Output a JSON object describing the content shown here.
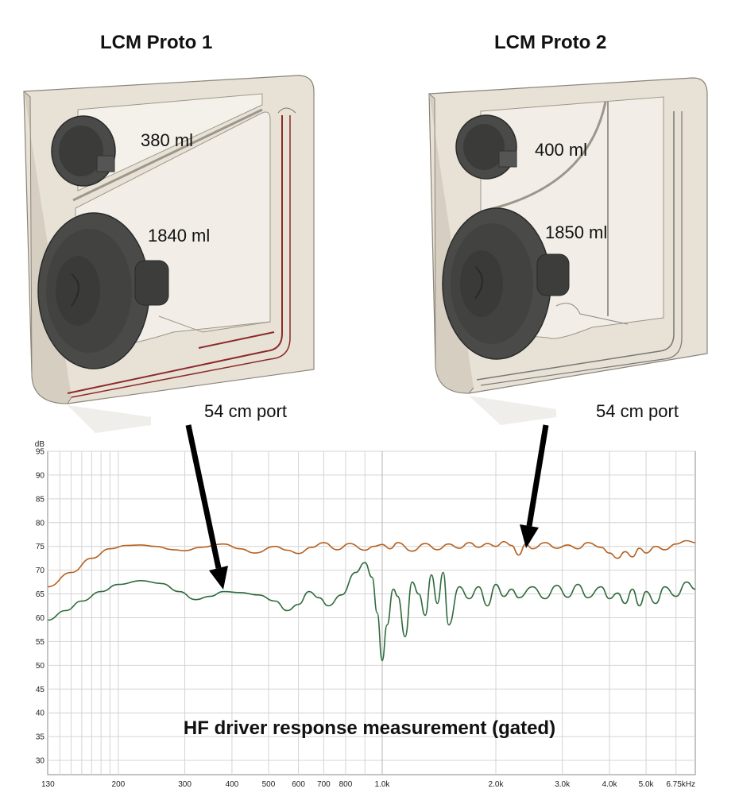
{
  "protos": [
    {
      "title": "LCM Proto 1",
      "hf_volume": "380 ml",
      "lf_volume": "1840 ml",
      "port": "54 cm port"
    },
    {
      "title": "LCM Proto 2",
      "hf_volume": "400 ml",
      "lf_volume": "1850 ml",
      "port": "54 cm port"
    }
  ],
  "colors": {
    "proto1_trace": "#2e6b3c",
    "proto2_trace": "#b5601f",
    "grid": "#d4d4d4",
    "cabinet": "#e8e2d6",
    "driver": "#4a4a48"
  },
  "chart_data": {
    "type": "line",
    "title": "HF driver response measurement (gated)",
    "ylabel": "dB",
    "xscale": "log",
    "xlim": [
      130,
      6750
    ],
    "ylim": [
      27,
      95
    ],
    "x_tick_labels": [
      "130",
      "200",
      "300",
      "400",
      "500",
      "600",
      "700",
      "800",
      "1.0k",
      "2.0k",
      "3.0k",
      "4.0k",
      "5.0k",
      "6.75kHz"
    ],
    "y_tick_labels": [
      "95",
      "90",
      "85",
      "80",
      "75",
      "70",
      "65",
      "60",
      "55",
      "50",
      "45",
      "40",
      "35",
      "30"
    ],
    "grid": true,
    "series": [
      {
        "color": "#b5601f",
        "x": [
          130,
          150,
          170,
          190,
          210,
          230,
          250,
          280,
          300,
          330,
          380,
          420,
          460,
          520,
          560,
          600,
          650,
          700,
          760,
          820,
          900,
          950,
          1000,
          1050,
          1100,
          1200,
          1300,
          1400,
          1500,
          1600,
          1700,
          1800,
          1900,
          2000,
          2100,
          2200,
          2300,
          2400,
          2500,
          2700,
          2900,
          3100,
          3300,
          3500,
          3800,
          4000,
          4200,
          4400,
          4600,
          4800,
          5000,
          5300,
          5600,
          6000,
          6400,
          6750
        ],
        "y": [
          66.5,
          69.5,
          72.5,
          74.5,
          75.2,
          75.3,
          75.0,
          74.3,
          74.1,
          74.8,
          75.5,
          74.5,
          73.6,
          75.0,
          74.2,
          73.5,
          74.8,
          75.8,
          74.3,
          75.6,
          74.2,
          75.0,
          75.4,
          74.5,
          75.8,
          74.0,
          75.6,
          74.3,
          75.5,
          74.6,
          75.8,
          74.8,
          75.6,
          75.0,
          76.0,
          75.2,
          73.2,
          75.5,
          74.5,
          75.8,
          74.6,
          75.3,
          74.5,
          75.8,
          74.8,
          73.6,
          72.5,
          73.9,
          72.8,
          74.6,
          73.6,
          75.0,
          74.3,
          75.5,
          76.2,
          75.8
        ]
      },
      {
        "color": "#2e6b3c",
        "x": [
          130,
          145,
          160,
          180,
          200,
          230,
          260,
          290,
          320,
          350,
          380,
          420,
          470,
          520,
          560,
          600,
          640,
          680,
          720,
          780,
          850,
          900,
          940,
          970,
          1000,
          1030,
          1070,
          1100,
          1150,
          1200,
          1250,
          1300,
          1350,
          1400,
          1450,
          1500,
          1600,
          1700,
          1800,
          1900,
          2000,
          2100,
          2200,
          2300,
          2500,
          2700,
          2900,
          3100,
          3300,
          3500,
          3800,
          4000,
          4200,
          4400,
          4600,
          4800,
          5000,
          5300,
          5600,
          6000,
          6400,
          6750
        ],
        "y": [
          59.5,
          61.5,
          63.5,
          65.5,
          67.0,
          67.8,
          67.2,
          65.5,
          63.8,
          64.5,
          65.5,
          65.3,
          64.8,
          63.5,
          61.5,
          62.8,
          65.5,
          64.2,
          62.5,
          64.8,
          69.5,
          71.6,
          68.5,
          61.0,
          51.0,
          58.5,
          66.0,
          64.5,
          56.0,
          67.5,
          65.0,
          60.5,
          69.0,
          63.0,
          69.5,
          58.5,
          66.5,
          64.0,
          66.5,
          62.5,
          67.0,
          64.5,
          66.0,
          64.2,
          66.5,
          64.0,
          66.8,
          64.3,
          67.0,
          64.2,
          66.5,
          64.0,
          65.2,
          63.0,
          66.0,
          62.5,
          65.5,
          63.0,
          66.5,
          64.5,
          67.5,
          66.0
        ]
      }
    ]
  }
}
